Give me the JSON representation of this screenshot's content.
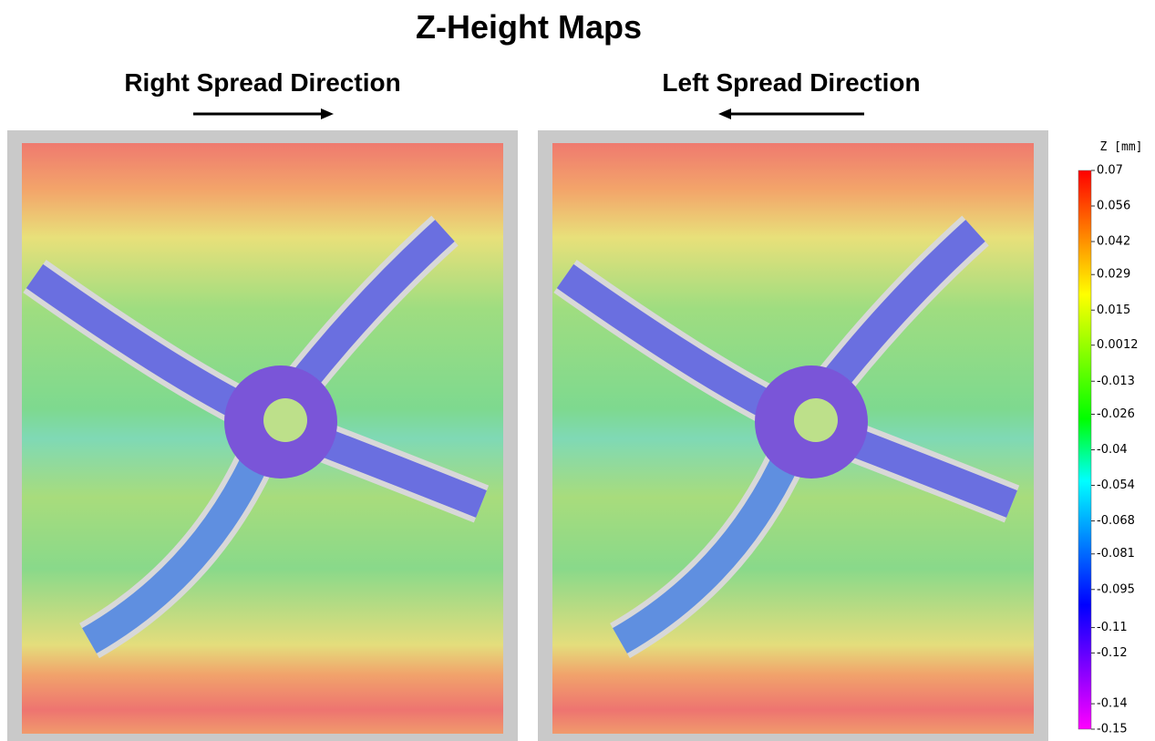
{
  "chart_data": {
    "type": "colorbar",
    "title": "Z-Height Maps",
    "panels": [
      {
        "label": "Right Spread Direction"
      },
      {
        "label": "Left Spread Direction"
      }
    ],
    "colorbar_label": "Z [mm]",
    "ylim": [
      -0.15,
      0.07
    ],
    "yticks": [
      0.07,
      0.056,
      0.042,
      0.029,
      0.015,
      0.0012,
      -0.013,
      -0.026,
      -0.04,
      -0.054,
      -0.068,
      -0.081,
      -0.095,
      -0.11,
      -0.12,
      -0.14,
      -0.15
    ],
    "colors": [
      "#ff0000",
      "#ff7f00",
      "#ffff00",
      "#7fff00",
      "#00ff00",
      "#00ffff",
      "#007fff",
      "#0000ff",
      "#7f00ff",
      "#ff00ff"
    ]
  }
}
